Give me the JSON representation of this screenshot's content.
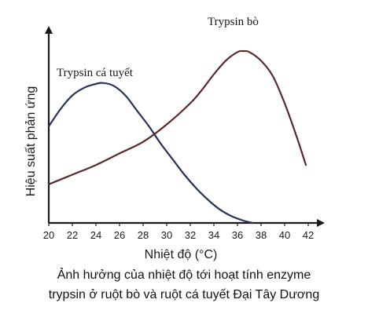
{
  "chart_data": {
    "type": "line",
    "xlabel": "Nhiệt độ (°C)",
    "ylabel": "Hiệu suất phản ứng",
    "xlim": [
      20,
      42
    ],
    "ticks": [
      "20",
      "22",
      "24",
      "26",
      "28",
      "30",
      "32",
      "34",
      "36",
      "38",
      "40",
      "42"
    ],
    "y_tick_labels_shown": false,
    "grid": false,
    "legend": "labels placed next to curves",
    "series": [
      {
        "name": "Trypsin cá tuyết",
        "color": "#26325a",
        "x": [
          20,
          21,
          22,
          23,
          24,
          24.6,
          25.5,
          26.5,
          27.5,
          28.5,
          29.5,
          30.5,
          31.5,
          32.5,
          33.5,
          34.5,
          35.5,
          36.5,
          37.3
        ],
        "y": [
          0.5,
          0.59,
          0.66,
          0.7,
          0.72,
          0.725,
          0.71,
          0.66,
          0.58,
          0.5,
          0.41,
          0.33,
          0.25,
          0.18,
          0.12,
          0.07,
          0.035,
          0.012,
          0.0
        ]
      },
      {
        "name": "Trypsin bò",
        "color": "#5a2a2a",
        "x": [
          20,
          22,
          24,
          26,
          28,
          30,
          32,
          33,
          34,
          35,
          36,
          36.5,
          37,
          38,
          39,
          40,
          41,
          41.8
        ],
        "y": [
          0.2,
          0.25,
          0.3,
          0.36,
          0.42,
          0.51,
          0.62,
          0.69,
          0.77,
          0.84,
          0.885,
          0.89,
          0.885,
          0.84,
          0.76,
          0.62,
          0.45,
          0.3
        ]
      }
    ]
  },
  "caption": {
    "line1": "Ảnh hưởng của nhiệt độ tới hoạt tính enzyme",
    "line2": "trypsin ở ruột bò và ruột cá tuyết Đại Tây Dương"
  }
}
